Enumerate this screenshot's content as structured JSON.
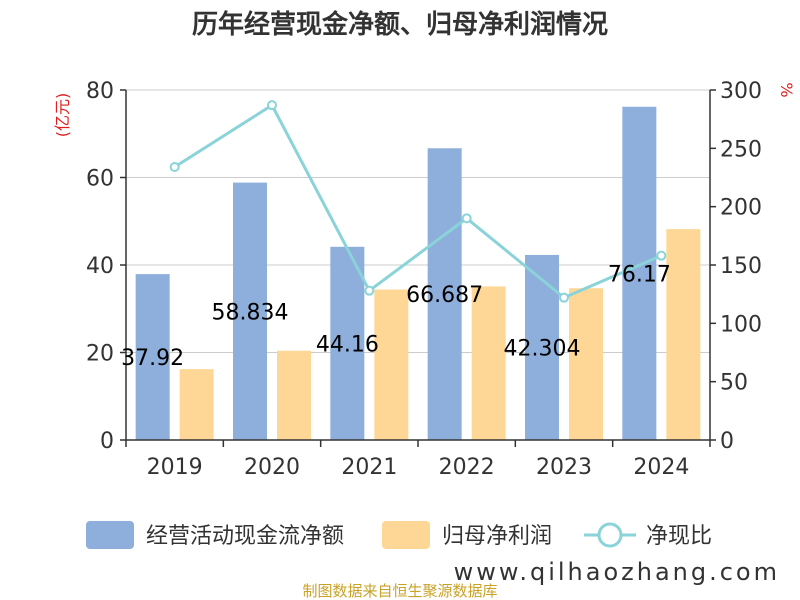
{
  "chart_data": {
    "type": "bar",
    "title": "历年经营现金净额、归母净利润情况",
    "categories": [
      "2019",
      "2020",
      "2021",
      "2022",
      "2023",
      "2024"
    ],
    "y_left": {
      "unit": "(亿元)",
      "ticks": [
        "0",
        "20",
        "40",
        "60",
        "80"
      ],
      "ylim": [
        0,
        80
      ]
    },
    "y_right": {
      "unit": "%",
      "ticks": [
        "0",
        "50",
        "100",
        "150",
        "200",
        "250",
        "300"
      ],
      "ylim": [
        0,
        300
      ]
    },
    "series": [
      {
        "name": "经营活动现金流净额",
        "type": "bar",
        "axis": "left",
        "color": "#8eaedb",
        "values": [
          37.92,
          58.834,
          44.16,
          66.687,
          42.304,
          76.17
        ],
        "labels": [
          "37.92",
          "58.834",
          "44.16",
          "66.687",
          "42.304",
          "76.17"
        ]
      },
      {
        "name": "归母净利润",
        "type": "bar",
        "axis": "left",
        "color": "#fed796",
        "values": [
          16.2,
          20.4,
          34.4,
          35.1,
          34.7,
          48.2
        ]
      },
      {
        "name": "净现比",
        "type": "line",
        "axis": "right",
        "color": "#8ad3d8",
        "values": [
          234,
          287,
          128,
          190,
          122,
          158
        ]
      }
    ],
    "grid": true,
    "legend_position": "bottom"
  },
  "source_note": "制图数据来自恒生聚源数据库",
  "watermark": "www.qilhaozhang.com",
  "colors": {
    "unit_red": "#e02020",
    "source_gold": "#c9a227",
    "axis": "#333333",
    "grid": "#cccccc"
  }
}
